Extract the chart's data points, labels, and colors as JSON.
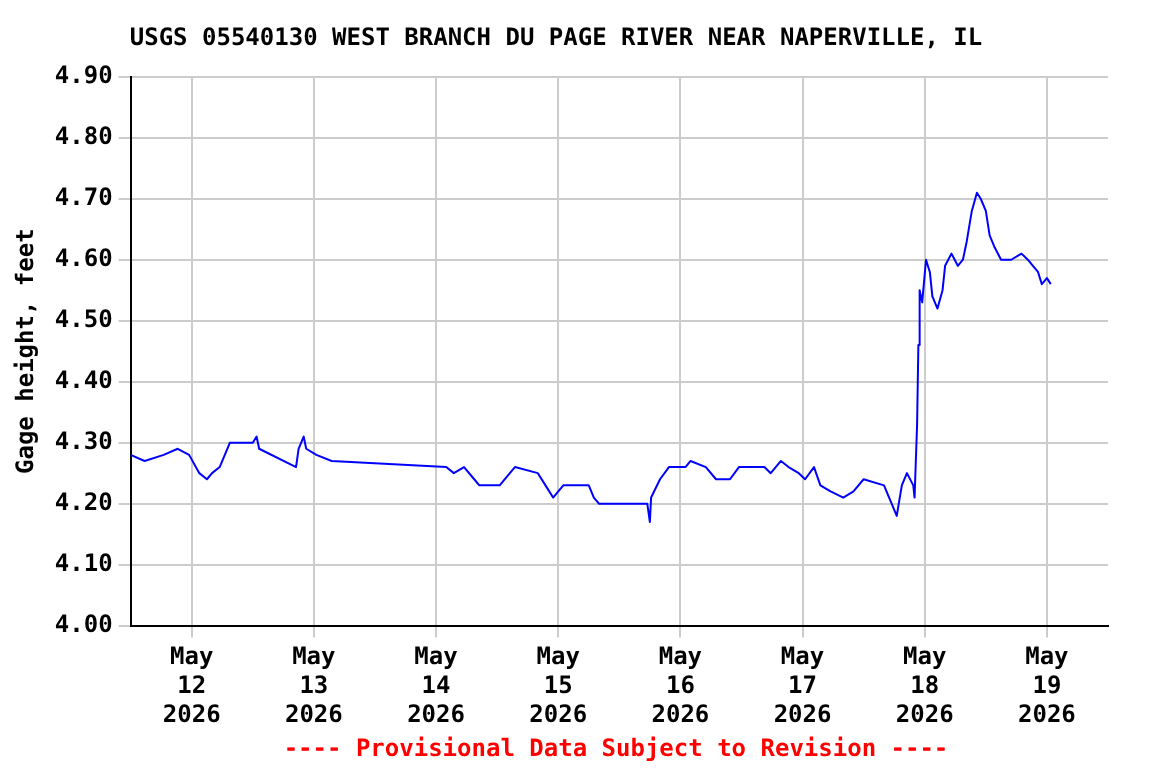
{
  "chart_data": {
    "type": "line",
    "title": "USGS 05540130 WEST BRANCH DU PAGE RIVER NEAR NAPERVILLE, IL",
    "ylabel": "Gage height, feet",
    "annotations": [
      "---- Provisional Data Subject to Revision ----"
    ],
    "x": [
      "2026-05-11T12:00",
      "2026-05-11T14:45",
      "2026-05-11T18:30",
      "2026-05-11T21:15",
      "2026-05-11T23:30",
      "2026-05-12T01:30",
      "2026-05-12T03:00",
      "2026-05-12T04:00",
      "2026-05-12T05:30",
      "2026-05-12T07:00",
      "2026-05-12T07:30",
      "2026-05-12T12:00",
      "2026-05-12T12:45",
      "2026-05-12T13:15",
      "2026-05-12T20:30",
      "2026-05-12T21:00",
      "2026-05-12T22:00",
      "2026-05-12T22:30",
      "2026-05-13T00:30",
      "2026-05-13T03:30",
      "2026-05-14T02:00",
      "2026-05-14T03:30",
      "2026-05-14T05:30",
      "2026-05-14T07:30",
      "2026-05-14T08:30",
      "2026-05-14T12:30",
      "2026-05-14T14:30",
      "2026-05-14T15:30",
      "2026-05-14T20:00",
      "2026-05-14T21:30",
      "2026-05-14T23:00",
      "2026-05-15T01:00",
      "2026-05-15T06:00",
      "2026-05-15T07:00",
      "2026-05-15T08:00",
      "2026-05-15T17:30",
      "2026-05-15T18:00",
      "2026-05-15T18:15",
      "2026-05-15T20:00",
      "2026-05-15T21:45",
      "2026-05-16T01:00",
      "2026-05-16T02:00",
      "2026-05-16T05:00",
      "2026-05-16T07:00",
      "2026-05-16T09:45",
      "2026-05-16T11:30",
      "2026-05-16T16:30",
      "2026-05-16T17:45",
      "2026-05-16T19:45",
      "2026-05-16T21:15",
      "2026-05-16T23:15",
      "2026-05-17T00:30",
      "2026-05-17T02:15",
      "2026-05-17T03:30",
      "2026-05-17T05:30",
      "2026-05-17T08:00",
      "2026-05-17T10:00",
      "2026-05-17T12:00",
      "2026-05-17T16:00",
      "2026-05-17T18:30",
      "2026-05-17T19:30",
      "2026-05-17T20:30",
      "2026-05-17T21:45",
      "2026-05-17T22:00",
      "2026-05-17T22:30",
      "2026-05-17T22:45",
      "2026-05-17T23:00",
      "2026-05-17T23:30",
      "2026-05-18T00:15",
      "2026-05-18T01:00",
      "2026-05-18T01:30",
      "2026-05-18T02:30",
      "2026-05-18T03:30",
      "2026-05-18T04:00",
      "2026-05-18T05:15",
      "2026-05-18T06:30",
      "2026-05-18T07:30",
      "2026-05-18T08:15",
      "2026-05-18T09:15",
      "2026-05-18T10:15",
      "2026-05-18T11:00",
      "2026-05-18T12:00",
      "2026-05-18T12:45",
      "2026-05-18T13:45",
      "2026-05-18T15:00",
      "2026-05-18T17:00",
      "2026-05-18T19:00",
      "2026-05-18T20:15",
      "2026-05-18T21:15",
      "2026-05-18T22:15",
      "2026-05-18T23:00",
      "2026-05-19T00:00",
      "2026-05-19T00:45"
    ],
    "series": [
      {
        "color": "#0000ff",
        "values": [
          4.28,
          4.27,
          4.28,
          4.29,
          4.28,
          4.25,
          4.24,
          4.25,
          4.26,
          4.29,
          4.3,
          4.3,
          4.31,
          4.29,
          4.26,
          4.29,
          4.31,
          4.29,
          4.28,
          4.27,
          4.26,
          4.25,
          4.26,
          4.24,
          4.23,
          4.23,
          4.25,
          4.26,
          4.25,
          4.23,
          4.21,
          4.23,
          4.23,
          4.21,
          4.2,
          4.2,
          4.17,
          4.21,
          4.24,
          4.26,
          4.26,
          4.27,
          4.26,
          4.24,
          4.24,
          4.26,
          4.26,
          4.25,
          4.27,
          4.26,
          4.25,
          4.24,
          4.26,
          4.23,
          4.22,
          4.21,
          4.22,
          4.24,
          4.23,
          4.18,
          4.23,
          4.25,
          4.23,
          4.21,
          4.33,
          4.46,
          4.55,
          4.53,
          4.6,
          4.58,
          4.54,
          4.52,
          4.55,
          4.59,
          4.61,
          4.59,
          4.6,
          4.63,
          4.68,
          4.71,
          4.7,
          4.68,
          4.64,
          4.62,
          4.6,
          4.6,
          4.61,
          4.6,
          4.59,
          4.58,
          4.56,
          4.57,
          4.56
        ]
      }
    ],
    "xlim": [
      "2026-05-11T12:00",
      "2026-05-19T12:00"
    ],
    "xticks": [
      {
        "value": "2026-05-12",
        "label": "May 12 2026"
      },
      {
        "value": "2026-05-13",
        "label": "May 13 2026"
      },
      {
        "value": "2026-05-14",
        "label": "May 14 2026"
      },
      {
        "value": "2026-05-15",
        "label": "May 15 2026"
      },
      {
        "value": "2026-05-16",
        "label": "May 16 2026"
      },
      {
        "value": "2026-05-17",
        "label": "May 17 2026"
      },
      {
        "value": "2026-05-18",
        "label": "May 18 2026"
      },
      {
        "value": "2026-05-19",
        "label": "May 19 2026"
      }
    ],
    "ylim": [
      4.0,
      4.9
    ],
    "yticks": [
      {
        "value": 4.0,
        "label": "4.00"
      },
      {
        "value": 4.1,
        "label": "4.10"
      },
      {
        "value": 4.2,
        "label": "4.20"
      },
      {
        "value": 4.3,
        "label": "4.30"
      },
      {
        "value": 4.4,
        "label": "4.40"
      },
      {
        "value": 4.5,
        "label": "4.50"
      },
      {
        "value": 4.6,
        "label": "4.60"
      },
      {
        "value": 4.7,
        "label": "4.70"
      },
      {
        "value": 4.8,
        "label": "4.80"
      },
      {
        "value": 4.9,
        "label": "4.90"
      }
    ],
    "grid": true,
    "legend": false,
    "marker": "none",
    "line_style": "solid"
  }
}
